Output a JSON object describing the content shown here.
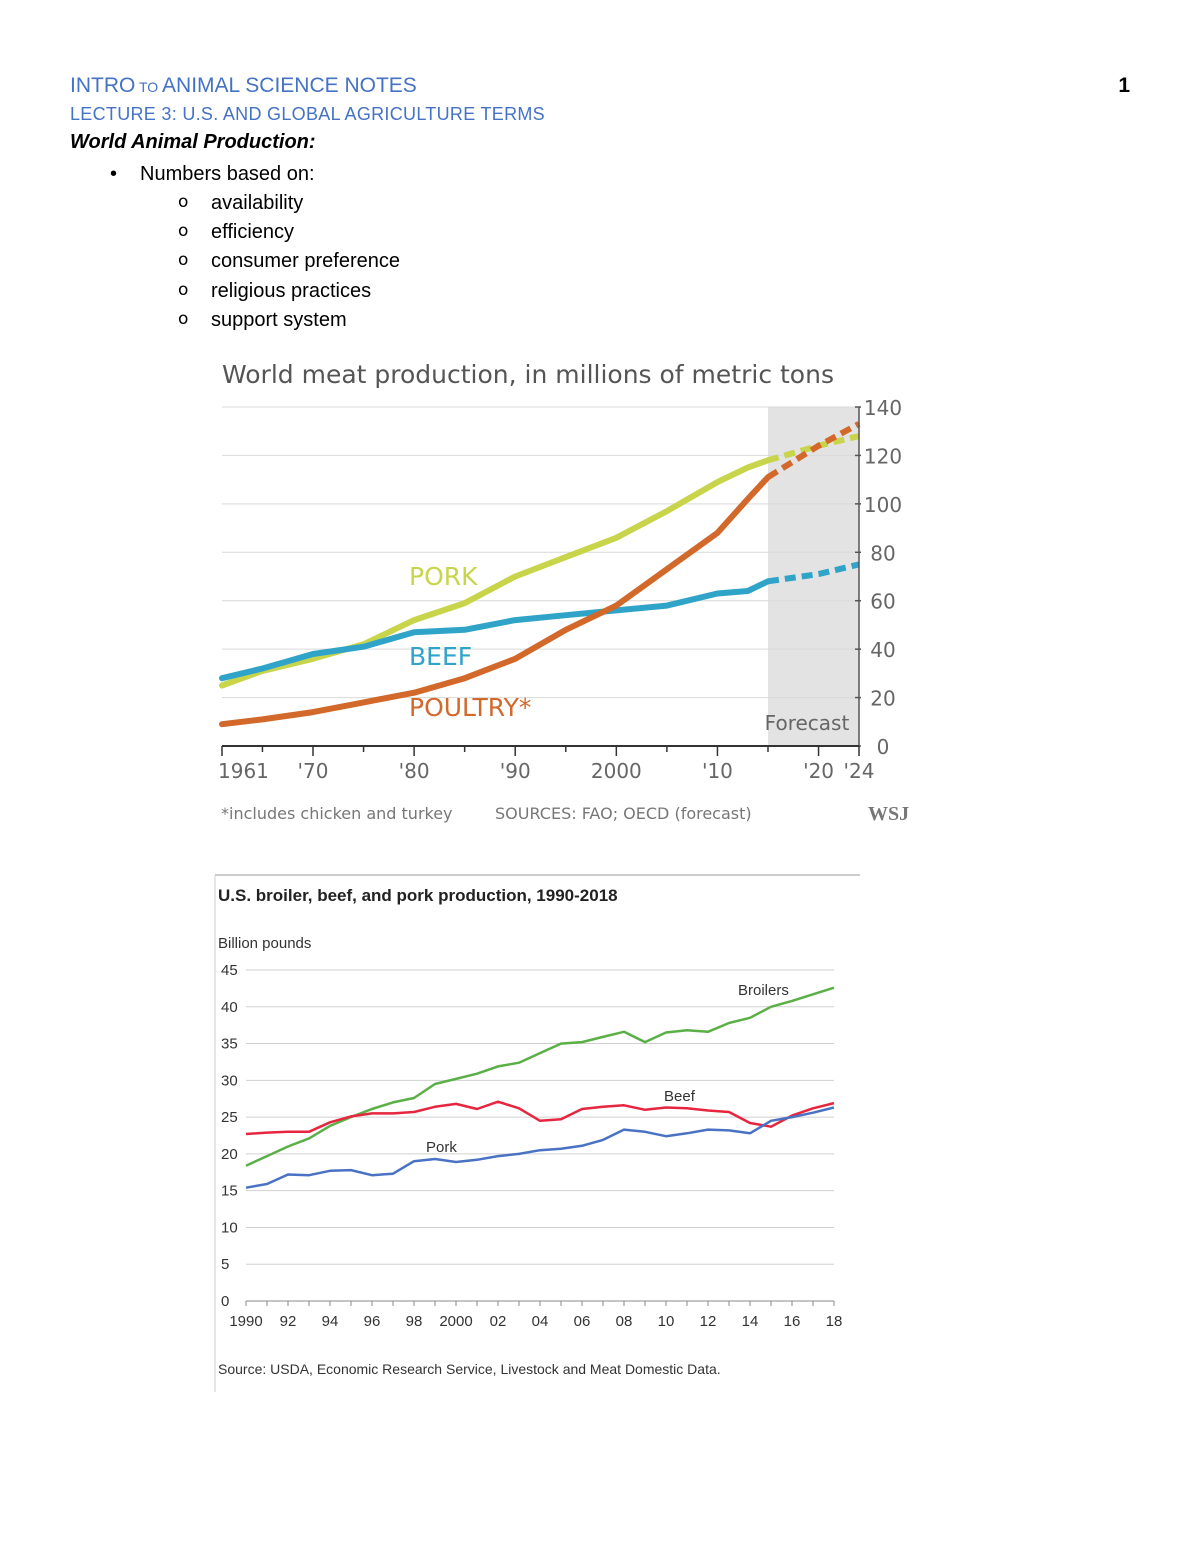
{
  "header": {
    "title_parts": [
      "INTRO",
      " TO ",
      "ANIMAL SCIENCE NOTES"
    ],
    "lecture": "LECTURE 3: U.S. AND GLOBAL AGRICULTURE TERMS",
    "page_number": "1"
  },
  "section_title": "World Animal Production:",
  "bullets": {
    "label": "Numbers based on:",
    "items": [
      "availability",
      "efficiency",
      "consumer preference",
      "religious practices",
      "support system"
    ]
  },
  "chart_data": [
    {
      "type": "line",
      "title": "World meat production, in millions of metric tons",
      "x_tick_labels": [
        "1961",
        "'70",
        "'80",
        "'90",
        "2000",
        "'10",
        "'20",
        "'24"
      ],
      "y_tick_labels": [
        "0",
        "20",
        "40",
        "60",
        "80",
        "100",
        "120",
        "140"
      ],
      "ylim": [
        0,
        140
      ],
      "xlim": [
        1961,
        2024
      ],
      "forecast_from": 2015,
      "forecast_label": "Forecast",
      "footnote": "*includes chicken and turkey",
      "source": "SOURCES: FAO; OECD (forecast)",
      "brand": "WSJ",
      "x": [
        1961,
        1965,
        1970,
        1975,
        1980,
        1985,
        1990,
        1995,
        2000,
        2005,
        2010,
        2013,
        2015,
        2020,
        2024
      ],
      "series": [
        {
          "name": "PORK",
          "color": "#C8D44A",
          "values": [
            25,
            31,
            36,
            42,
            52,
            59,
            70,
            78,
            86,
            97,
            109,
            115,
            118,
            124,
            128
          ]
        },
        {
          "name": "BEEF",
          "color": "#2FA4C8",
          "values": [
            28,
            32,
            38,
            41,
            47,
            48,
            52,
            54,
            56,
            58,
            63,
            64,
            68,
            71,
            75
          ]
        },
        {
          "name": "POULTRY*",
          "color": "#D2682A",
          "values": [
            9,
            11,
            14,
            18,
            22,
            28,
            36,
            48,
            58,
            73,
            88,
            102,
            111,
            124,
            133
          ]
        }
      ]
    },
    {
      "type": "line",
      "title": "U.S. broiler, beef, and pork production, 1990-2018",
      "ylabel": "Billion pounds",
      "ylim": [
        0,
        45
      ],
      "x_tick_labels": [
        "1990",
        "92",
        "94",
        "96",
        "98",
        "2000",
        "02",
        "04",
        "06",
        "08",
        "10",
        "12",
        "14",
        "16",
        "18"
      ],
      "y_tick_labels": [
        "0",
        "5",
        "10",
        "15",
        "20",
        "25",
        "30",
        "35",
        "40",
        "45"
      ],
      "source": "Source: USDA, Economic Research Service, Livestock and Meat Domestic Data.",
      "x": [
        1990,
        1991,
        1992,
        1993,
        1994,
        1995,
        1996,
        1997,
        1998,
        1999,
        2000,
        2001,
        2002,
        2003,
        2004,
        2005,
        2006,
        2007,
        2008,
        2009,
        2010,
        2011,
        2012,
        2013,
        2014,
        2015,
        2016,
        2017,
        2018
      ],
      "series": [
        {
          "name": "Broilers",
          "color": "#5BAF47",
          "values": [
            18.4,
            19.7,
            21.0,
            22.1,
            23.8,
            25.0,
            26.1,
            27.0,
            27.6,
            29.5,
            30.2,
            30.9,
            31.9,
            32.4,
            33.7,
            35.0,
            35.2,
            35.9,
            36.6,
            35.2,
            36.5,
            36.8,
            36.6,
            37.8,
            38.5,
            40.0,
            40.8,
            41.7,
            42.6
          ]
        },
        {
          "name": "Beef",
          "color": "#E8253F",
          "values": [
            22.7,
            22.9,
            23.0,
            23.0,
            24.3,
            25.1,
            25.5,
            25.5,
            25.7,
            26.4,
            26.8,
            26.1,
            27.1,
            26.2,
            24.5,
            24.7,
            26.1,
            26.4,
            26.6,
            26.0,
            26.3,
            26.2,
            25.9,
            25.7,
            24.2,
            23.7,
            25.2,
            26.2,
            26.9
          ]
        },
        {
          "name": "Pork",
          "color": "#4A72C4",
          "values": [
            15.4,
            15.9,
            17.2,
            17.1,
            17.7,
            17.8,
            17.1,
            17.3,
            19.0,
            19.3,
            18.9,
            19.2,
            19.7,
            20.0,
            20.5,
            20.7,
            21.1,
            21.9,
            23.3,
            23.0,
            22.4,
            22.8,
            23.3,
            23.2,
            22.8,
            24.5,
            25.0,
            25.6,
            26.3
          ]
        }
      ]
    }
  ]
}
